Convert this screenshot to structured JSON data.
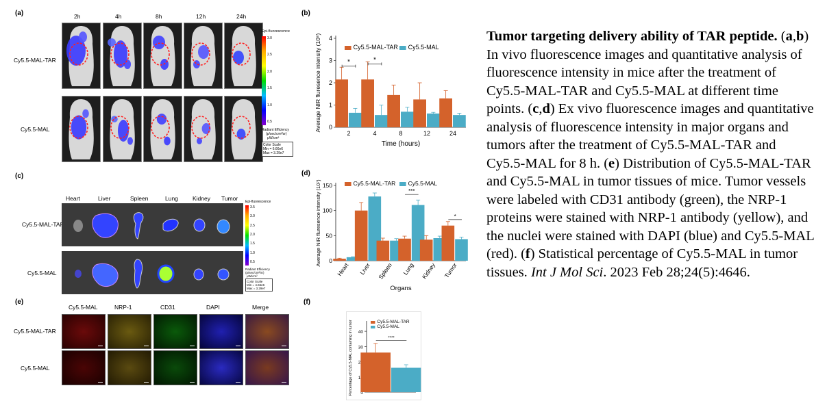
{
  "panel_a": {
    "label": "(a)",
    "timepoints": [
      "2h",
      "4h",
      "8h",
      "12h",
      "24h"
    ],
    "rows": [
      "Cy5.5-MAL-TAR",
      "Cy5.5-MAL"
    ],
    "colorbar_title": "Epi-fluorescence",
    "colorbar_ticks": [
      "3.0",
      "2.5",
      "2.0",
      "1.5",
      "1.0",
      "0.5"
    ],
    "colorbar_unit_1": "Radiant Efficiency",
    "colorbar_unit_2": "(p/sec/cm²/sr)",
    "colorbar_unit_3": "μW/cm²",
    "color_scale": [
      "Color Scale",
      "Min = 6.66e6",
      "Max = 3.29e7"
    ]
  },
  "panel_c": {
    "label": "(c)",
    "organs": [
      "Heart",
      "Liver",
      "Spleen",
      "Lung",
      "Kidney",
      "Tumor"
    ],
    "rows": [
      "Cy5.5-MAL-TAR",
      "Cy5.5-MAL"
    ],
    "colorbar_title": "Epi-fluorescence",
    "colorbar_ticks": [
      "3.5",
      "3.0",
      "2.5",
      "2.0",
      "1.5",
      "1.0",
      "0.5"
    ],
    "colorbar_unit_1": "Radiant Efficiency",
    "colorbar_unit_2": "(p/sec/cm²/sr)",
    "colorbar_unit_3": "μW/cm²",
    "color_scale": [
      "Color Scale",
      "Min = 4.65e6",
      "Max = 3.29e7"
    ]
  },
  "panel_e": {
    "label": "(e)",
    "columns": [
      "Cy5.5-MAL",
      "NRP-1",
      "CD31",
      "DAPI",
      "Merge"
    ],
    "rows": [
      "Cy5.5-MAL-TAR",
      "Cy5.5-MAL"
    ]
  },
  "colors": {
    "tar": "#d4622b",
    "mal": "#4bacc6"
  },
  "chart_data": [
    {
      "panel": "(b)",
      "type": "bar",
      "categories": [
        "2",
        "4",
        "8",
        "12",
        "24"
      ],
      "series": [
        {
          "name": "Cy5.5-MAL-TAR",
          "values": [
            2.15,
            2.15,
            1.45,
            1.25,
            1.3
          ],
          "errors": [
            0.55,
            0.8,
            0.45,
            0.75,
            0.35
          ]
        },
        {
          "name": "Cy5.5-MAL",
          "values": [
            0.65,
            0.55,
            0.7,
            0.62,
            0.55
          ],
          "errors": [
            0.2,
            0.45,
            0.2,
            0.05,
            0.08
          ]
        }
      ],
      "xlabel": "Time (hours)",
      "ylabel": "Average NIR fluresence intensity (10⁸)",
      "yticks": [
        "0",
        "1",
        "2",
        "3",
        "4"
      ],
      "ylim": [
        0,
        4
      ],
      "significance": [
        "*",
        "*"
      ],
      "legend": "top"
    },
    {
      "panel": "(d)",
      "type": "bar",
      "categories": [
        "Heart",
        "Liver",
        "Spleen",
        "Lung",
        "Kidney",
        "Tumor"
      ],
      "series": [
        {
          "name": "Cy5.5-MAL-TAR",
          "values": [
            4,
            100,
            40,
            44,
            42,
            70
          ],
          "errors": [
            1,
            16,
            5,
            5,
            8,
            8
          ]
        },
        {
          "name": "Cy5.5-MAL",
          "values": [
            7,
            128,
            40,
            111,
            45,
            43
          ],
          "errors": [
            1,
            7,
            4,
            10,
            4,
            4
          ]
        }
      ],
      "xlabel": "Organs",
      "ylabel": "Average NIR fluresence intensity (10⁷)",
      "yticks": [
        "0",
        "50",
        "100",
        "150"
      ],
      "ylim": [
        0,
        150
      ],
      "significance": [
        "***",
        "*"
      ],
      "legend": "top"
    },
    {
      "panel": "(f)",
      "type": "bar",
      "categories": [
        ""
      ],
      "series": [
        {
          "name": "Cy5.5-MAL-TAR",
          "values": [
            26
          ],
          "errors": [
            6
          ]
        },
        {
          "name": "Cy5.5-MAL",
          "values": [
            16
          ],
          "errors": [
            2
          ]
        }
      ],
      "xlabel": "",
      "ylabel": "Percentage of Cy5.5-MAL containing in tumor",
      "yticks": [
        "0",
        "10",
        "20",
        "30",
        "40"
      ],
      "ylim": [
        0,
        45
      ],
      "significance": [
        "****"
      ],
      "legend": "top"
    }
  ],
  "caption": {
    "title": "Tumor targeting delivery ability of TAR peptide.",
    "p1a": " (",
    "ab1": "a",
    "comma": ",",
    "ab2": "b",
    "p1b": ") In vivo fluorescence images and quantitative analysis of fluorescence intensity in mice after the treatment of Cy5.5-MAL-TAR and Cy5.5-MAL at different time points. (",
    "cd1": "c",
    "cd2": "d",
    "p2": ") Ex vivo fluorescence images and quantitative analysis of fluorescence intensity in major organs and tumors after the treatment of Cy5.5-MAL-TAR and Cy5.5-MAL for 8 h. (",
    "e": "e",
    "p3": ") Distribution of Cy5.5-MAL-TAR and Cy5.5-MAL in tumor tissues of mice. Tumor vessels were labeled with CD31 antibody (green), the NRP-1 proteins were stained with NRP-1 antibody (yellow), and the nuclei were stained with DAPI (blue) and Cy5.5-MAL (red). (",
    "f": "f",
    "p4": ") Statistical percentage of Cy5.5-MAL in tumor tissues. ",
    "journal": "Int J Mol Sci",
    "cite": ". 2023 Feb 28;24(5):4646."
  }
}
